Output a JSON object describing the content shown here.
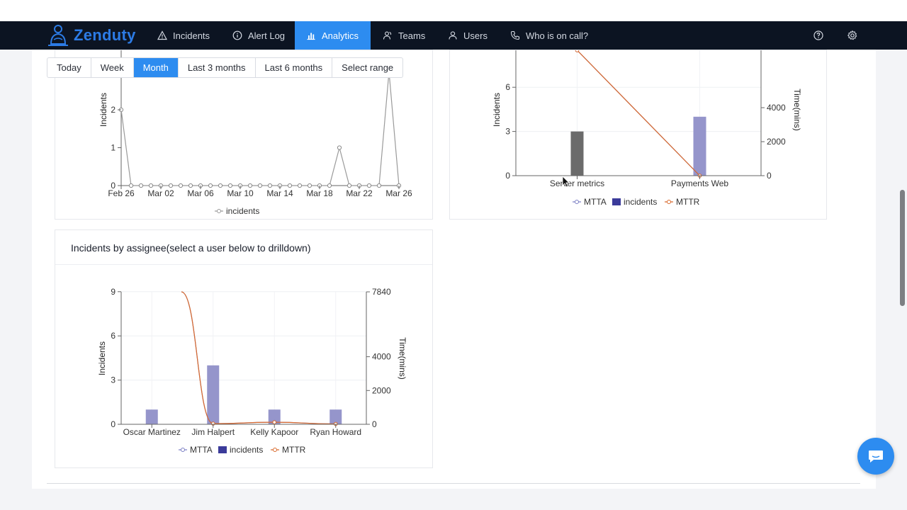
{
  "app": {
    "name": "Zenduty"
  },
  "nav": {
    "items": [
      {
        "label": "Incidents",
        "icon": "warning-icon"
      },
      {
        "label": "Alert Log",
        "icon": "info-icon"
      },
      {
        "label": "Analytics",
        "icon": "bar-chart-icon",
        "active": true
      },
      {
        "label": "Teams",
        "icon": "team-icon"
      },
      {
        "label": "Users",
        "icon": "user-icon"
      },
      {
        "label": "Who is on call?",
        "icon": "phone-icon"
      }
    ],
    "right_icons": [
      "help-icon",
      "settings-icon"
    ]
  },
  "range_selector": {
    "options": [
      "Today",
      "Week",
      "Month",
      "Last 3 months",
      "Last 6 months",
      "Select range"
    ],
    "selected": "Month"
  },
  "colors": {
    "accent": "#2d8cf0",
    "navbar": "#0c1422",
    "mtta": "#7b7fc4",
    "incidents_bar": "#9595cb",
    "mttr": "#d9692c",
    "dark_bar": "#6b6b6b"
  },
  "cards": {
    "timeline": {
      "legend": "incidents"
    },
    "service_chart": {
      "legend": [
        "MTTA",
        "incidents",
        "MTTR"
      ]
    },
    "assignee_chart": {
      "title": "Incidents by assignee(select a user below to drilldown)",
      "legend": [
        "MTTA",
        "incidents",
        "MTTR"
      ]
    }
  },
  "chart_data": [
    {
      "type": "line",
      "series": [
        {
          "name": "incidents",
          "values": [
            2,
            0,
            0,
            0,
            0,
            0,
            0,
            0,
            0,
            0,
            0,
            0,
            0,
            0,
            0,
            0,
            0,
            0,
            0,
            0,
            0,
            0,
            1,
            0,
            0,
            0,
            0,
            3,
            0
          ]
        }
      ],
      "x": [
        "Feb 26",
        "Feb 27",
        "Feb 28",
        "Mar 01",
        "Mar 02",
        "Mar 03",
        "Mar 04",
        "Mar 05",
        "Mar 06",
        "Mar 07",
        "Mar 08",
        "Mar 09",
        "Mar 10",
        "Mar 11",
        "Mar 12",
        "Mar 13",
        "Mar 14",
        "Mar 15",
        "Mar 16",
        "Mar 17",
        "Mar 18",
        "Mar 19",
        "Mar 20",
        "Mar 21",
        "Mar 22",
        "Mar 23",
        "Mar 24",
        "Mar 25",
        "Mar 26"
      ],
      "xticks": [
        "Feb 26",
        "Mar 02",
        "Mar 06",
        "Mar 10",
        "Mar 14",
        "Mar 18",
        "Mar 22",
        "Mar 26"
      ],
      "ylabel": "Incidents",
      "yticks": [
        0,
        1,
        2
      ],
      "ylim": [
        0,
        3
      ]
    },
    {
      "type": "bar",
      "categories": [
        "Server metrics",
        "Payments Web"
      ],
      "series": [
        {
          "name": "incidents",
          "values": [
            3,
            4
          ]
        },
        {
          "name": "MTTA",
          "values": [
            8000,
            0
          ]
        },
        {
          "name": "MTTR",
          "values": [
            8000,
            0
          ]
        }
      ],
      "ylabel": "Incidents",
      "y2label": "Time(mins)",
      "yticks": [
        0,
        3,
        6
      ],
      "y2ticks": [
        0,
        2000,
        4000
      ],
      "ylim": [
        0,
        9
      ],
      "y2lim": [
        0,
        7840
      ]
    },
    {
      "type": "bar",
      "title": "Incidents by assignee(select a user below to drilldown)",
      "categories": [
        "Oscar Martinez",
        "Jim Halpert",
        "Kelly Kapoor",
        "Ryan Howard"
      ],
      "series": [
        {
          "name": "incidents",
          "values": [
            1,
            4,
            1,
            1
          ]
        },
        {
          "name": "MTTA",
          "values": [
            null,
            40,
            120,
            20
          ]
        },
        {
          "name": "MTTR",
          "values": [
            null,
            40,
            120,
            20
          ]
        }
      ],
      "ylabel": "Incidents",
      "y2label": "Time(mins)",
      "yticks": [
        0,
        3,
        6,
        9
      ],
      "y2ticks": [
        0,
        2000,
        4000,
        7840
      ],
      "ylim": [
        0,
        9
      ],
      "y2lim": [
        0,
        7840
      ]
    }
  ]
}
